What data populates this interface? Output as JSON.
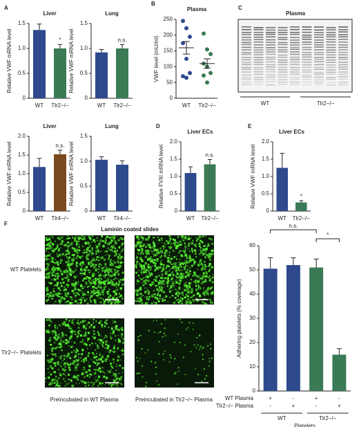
{
  "chart_data": [
    {
      "type": "bar",
      "label": "A",
      "title": "Liver",
      "ylabel": "Relative VWF mRNA level",
      "categories": [
        "WT",
        "Tlr2−/−"
      ],
      "values": [
        1.37,
        1.0
      ],
      "errors": [
        0.12,
        0.08
      ],
      "colors": [
        "#2e4a8c",
        "#3a7a55"
      ],
      "value_annotations": [
        null,
        "*"
      ],
      "ylim": [
        0,
        1.5
      ],
      "yticks": [
        0,
        0.5,
        {
          "value": 1,
          "label": "1.0"
        },
        1.5
      ]
    },
    {
      "type": "bar",
      "title": "Lung",
      "ylabel": "Relative VWF mRNA level",
      "categories": [
        "WT",
        "Tlr2−/−"
      ],
      "values": [
        0.92,
        1.0
      ],
      "errors": [
        0.06,
        0.08
      ],
      "colors": [
        "#2e4a8c",
        "#3a7a55"
      ],
      "value_annotations": [
        null,
        "n.s."
      ],
      "ylim": [
        0,
        1.5
      ],
      "yticks": [
        0,
        0.5,
        {
          "value": 1,
          "label": "1.0"
        },
        1.5
      ]
    },
    {
      "type": "bar",
      "title": "Liver",
      "ylabel": "Relative VWF mRNA level",
      "categories": [
        "WT",
        "Tlr4−/−"
      ],
      "values": [
        1.18,
        1.52
      ],
      "errors": [
        0.23,
        0.11
      ],
      "colors": [
        "#2e4a8c",
        "#7a4a1e"
      ],
      "value_annotations": [
        null,
        "n.s."
      ],
      "ylim": [
        0,
        2
      ],
      "yticks": [
        0,
        0.5,
        {
          "value": 1,
          "label": "1.0"
        },
        1.5,
        {
          "value": 2,
          "label": "2.0"
        }
      ]
    },
    {
      "type": "bar",
      "title": "Lung",
      "ylabel": "Relative VWF mRNA level",
      "categories": [
        "WT",
        "Tlr4−/−"
      ],
      "values": [
        1.03,
        0.93
      ],
      "errors": [
        0.06,
        0.08
      ],
      "colors": [
        "#2e4a8c",
        "#2e4a8c"
      ],
      "value_annotations": [
        null,
        null
      ],
      "ylim": [
        0,
        1.5
      ],
      "yticks": [
        0,
        0.5,
        {
          "value": 1,
          "label": "1.0"
        },
        1.5
      ]
    },
    {
      "type": "dotplot",
      "label": "B",
      "title": "Plasma",
      "ylabel": "VWF level (mU/ml)",
      "categories": [
        "WT",
        "Tlr2−/−"
      ],
      "points": [
        [
          245,
          222,
          195,
          175,
          125,
          80,
          70,
          65
        ],
        [
          205,
          155,
          140,
          110,
          100,
          80,
          72,
          50
        ]
      ],
      "means": [
        160,
        110
      ],
      "errors": [
        20,
        15
      ],
      "colors": [
        "#2e4a8c",
        "#3a7a55"
      ],
      "ylim": [
        0,
        250
      ],
      "yticks": [
        0,
        50,
        100,
        150,
        200,
        250
      ]
    },
    {
      "type": "bar",
      "label": "D",
      "title": "Liver ECs",
      "ylabel": "Relative FVIII mRNA level",
      "categories": [
        "WT",
        "Tlr2−/−"
      ],
      "values": [
        1.1,
        1.35
      ],
      "errors": [
        0.18,
        0.14
      ],
      "colors": [
        "#2e4a8c",
        "#3a7a55"
      ],
      "value_annotations": [
        null,
        "n.s."
      ],
      "ylim": [
        0,
        2
      ],
      "yticks": [
        0,
        0.5,
        {
          "value": 1,
          "label": "1.0"
        },
        1.5,
        {
          "value": 2,
          "label": "2.0"
        }
      ]
    },
    {
      "type": "bar",
      "label": "E",
      "title": "Liver ECs",
      "ylabel": "Relative VWF mRNA level",
      "categories": [
        "WT",
        "Tlr2−/−"
      ],
      "values": [
        1.25,
        0.25
      ],
      "errors": [
        0.42,
        0.05
      ],
      "colors": [
        "#2e4a8c",
        "#3a7a55"
      ],
      "value_annotations": [
        null,
        "*"
      ],
      "ylim": [
        0,
        2
      ],
      "yticks": [
        0,
        0.5,
        {
          "value": 1,
          "label": "1.0"
        },
        1.5,
        {
          "value": 2,
          "label": "2.0"
        }
      ]
    },
    {
      "type": "bar",
      "ylabel": "Adhering platelets (% coverage)",
      "values": [
        50.5,
        52,
        51,
        15
      ],
      "errors": [
        4.5,
        3,
        3.5,
        2.5
      ],
      "colors": [
        "#2e4a8c",
        "#2e4a8c",
        "#3a7a55",
        "#3a7a55"
      ],
      "ylim": [
        0,
        60
      ],
      "yticks": [
        0,
        10,
        20,
        30,
        40,
        50,
        60
      ],
      "brackets": [
        "n.s.",
        "*"
      ],
      "table": [
        {
          "name": "WT Plasma",
          "marks": [
            "+",
            "-",
            "+",
            "-"
          ]
        },
        {
          "name": "Tlr2−/− Plasma",
          "marks": [
            "-",
            "+",
            "-",
            "+"
          ]
        }
      ],
      "groups": [
        "WT",
        "Tlr2−/−"
      ],
      "group_title": "Platelets"
    }
  ],
  "gel": {
    "label": "C",
    "title": "Plasma",
    "groups": [
      "WT",
      "Tlr2−/−"
    ]
  },
  "micrographs": {
    "label": "F",
    "title": "Laminin coated slides",
    "rows": [
      "WT Platelets",
      "Tlr2−/− Platelets"
    ],
    "columns": [
      "Preincubated in WT Plasma",
      "Preincubated in Tlr2−/− Plasma"
    ]
  }
}
